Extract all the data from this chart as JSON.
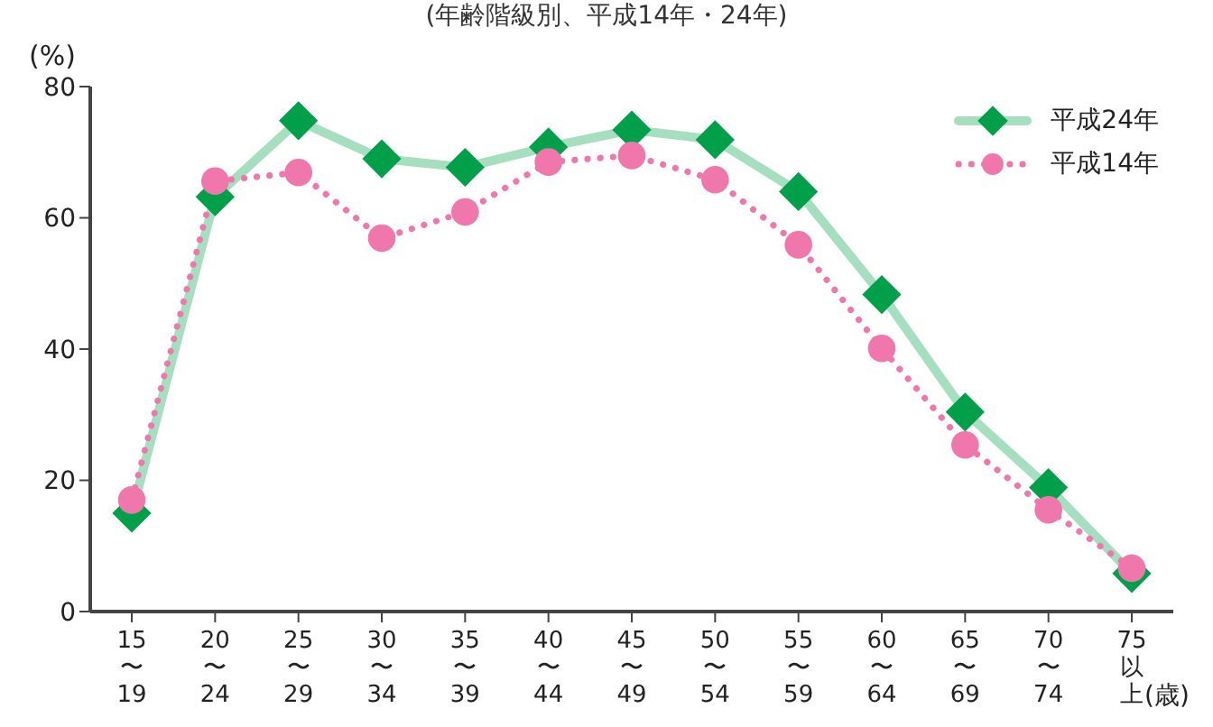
{
  "chart_data": {
    "type": "line",
    "title": "(年齢階級別、平成14年・24年)",
    "ylabel": "(%)",
    "xlabel": "(歳)",
    "categories": [
      "15\n〜\n19",
      "20\n〜\n24",
      "25\n〜\n29",
      "30\n〜\n34",
      "35\n〜\n39",
      "40\n〜\n44",
      "45\n〜\n49",
      "50\n〜\n54",
      "55\n〜\n59",
      "60\n〜\n64",
      "65\n〜\n69",
      "70\n〜\n74",
      "75以上"
    ],
    "series": [
      {
        "name": "平成24年",
        "color": "#00a04a",
        "marker": "diamond",
        "line_style": "solid",
        "values": [
          15,
          63.2,
          74.8,
          69,
          67.7,
          70.8,
          73.4,
          71.9,
          64,
          48.3,
          30.4,
          18.9,
          5.8
        ]
      },
      {
        "name": "平成14年",
        "color": "#ef77ab",
        "marker": "circle",
        "line_style": "dotted",
        "values": [
          17,
          65.6,
          66.9,
          56.9,
          60.9,
          68.5,
          69.5,
          65.8,
          55.9,
          40.1,
          25.4,
          15.5,
          6.6
        ]
      }
    ],
    "ylim": [
      0,
      80
    ],
    "yticks": [
      0,
      20,
      40,
      60,
      80
    ],
    "grid": false,
    "legend": "top right"
  }
}
